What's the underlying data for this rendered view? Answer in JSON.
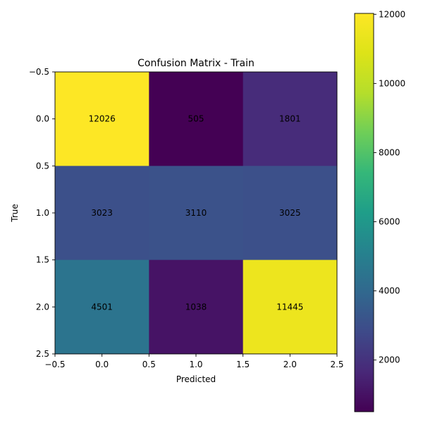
{
  "chart_data": {
    "type": "heatmap",
    "title": "Confusion Matrix - Train",
    "xlabel": "Predicted",
    "ylabel": "True",
    "matrix": [
      [
        12026,
        505,
        1801
      ],
      [
        3023,
        3110,
        3025
      ],
      [
        4501,
        1038,
        11445
      ]
    ],
    "x_ticks": [
      "−0.5",
      "0.0",
      "0.5",
      "1.0",
      "1.5",
      "2.0",
      "2.5"
    ],
    "y_ticks": [
      "−0.5",
      "0.0",
      "0.5",
      "1.0",
      "1.5",
      "2.0",
      "2.5"
    ],
    "xlim": [
      -0.5,
      2.5
    ],
    "ylim": [
      2.5,
      -0.5
    ],
    "colormap": "viridis",
    "color_range": [
      505,
      12026
    ],
    "colorbar_ticks": [
      "2000",
      "4000",
      "6000",
      "8000",
      "10000",
      "12000"
    ],
    "grid": false
  }
}
